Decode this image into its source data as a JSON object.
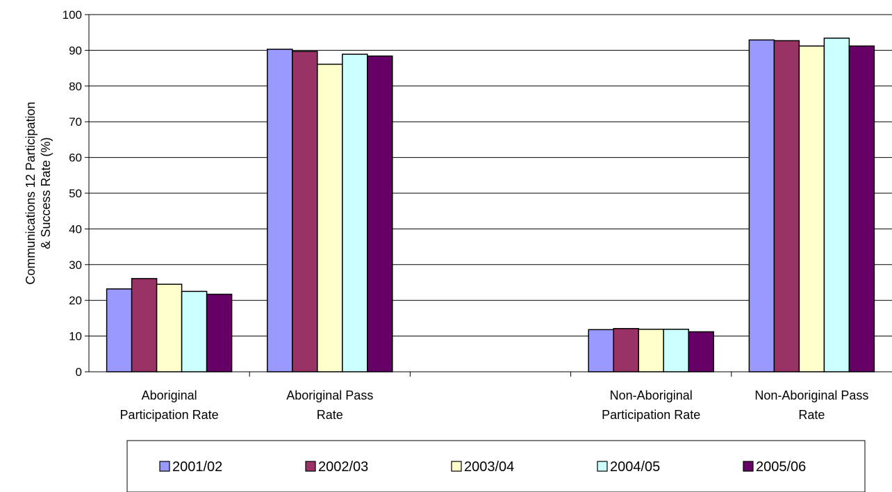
{
  "chart_data": {
    "type": "bar",
    "categories": [
      "Aboriginal Participation Rate",
      "Aboriginal Pass Rate",
      "",
      "Non-Aboriginal Participation Rate",
      "Non-Aboriginal Pass Rate"
    ],
    "category_label_lines": [
      [
        "Aboriginal",
        "Participation Rate"
      ],
      [
        "Aboriginal Pass",
        "Rate"
      ],
      [],
      [
        "Non-Aboriginal",
        "Participation Rate"
      ],
      [
        "Non-Aboriginal Pass",
        "Rate"
      ]
    ],
    "series": [
      {
        "name": "2001/02",
        "color": "#9999ff",
        "values": [
          23.2,
          90.3,
          null,
          11.8,
          92.9
        ]
      },
      {
        "name": "2002/03",
        "color": "#993366",
        "values": [
          26.1,
          89.7,
          null,
          12.1,
          92.7
        ]
      },
      {
        "name": "2003/04",
        "color": "#ffffcc",
        "values": [
          24.5,
          86.1,
          null,
          11.9,
          91.2
        ]
      },
      {
        "name": "2004/05",
        "color": "#ccffff",
        "values": [
          22.5,
          88.9,
          null,
          11.9,
          93.4
        ]
      },
      {
        "name": "2005/06",
        "color": "#660066",
        "values": [
          21.7,
          88.4,
          null,
          11.2,
          91.2
        ]
      }
    ],
    "ylabel_lines": [
      "Communications 12 Participation",
      "& Success Rate (%)"
    ],
    "ylim": [
      0,
      100
    ],
    "yticks": [
      0,
      10,
      20,
      30,
      40,
      50,
      60,
      70,
      80,
      90,
      100
    ],
    "grid": true,
    "legend_position": "bottom"
  }
}
